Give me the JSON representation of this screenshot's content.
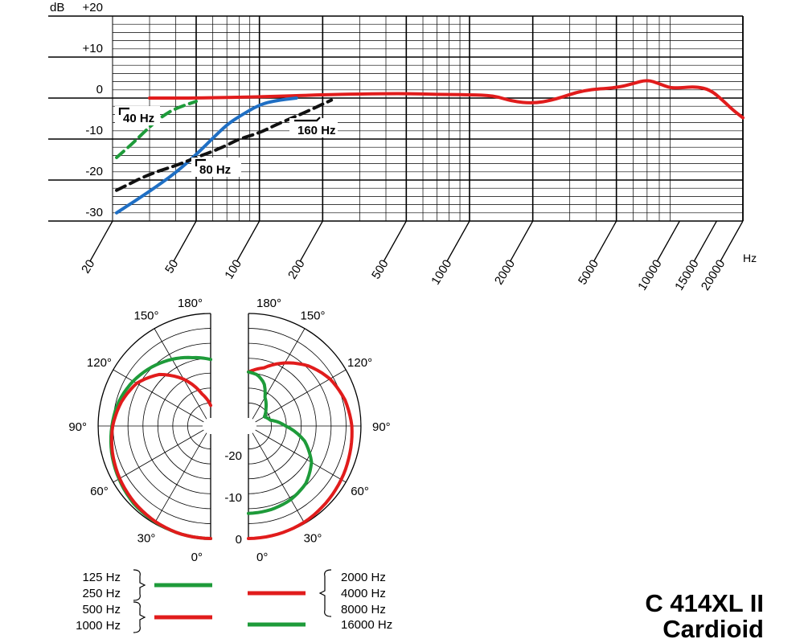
{
  "title": "C 414XL II",
  "subtitle": "Cardioid",
  "colors": {
    "green": "#1e9b3a",
    "red": "#e11c1c",
    "blue": "#1f6fc4",
    "black": "#111111"
  },
  "chart_data": [
    {
      "type": "line",
      "name": "frequency response",
      "xscale": "log",
      "xlim": [
        20,
        20000
      ],
      "ylim": [
        -30,
        20
      ],
      "xlabel": "Hz",
      "ylabel": "dB",
      "xticks": [
        "20",
        "50",
        "100",
        "200",
        "500",
        "1000",
        "2000",
        "5000",
        "10000",
        "15000",
        "20000"
      ],
      "yticks": [
        "+20",
        "+10",
        "0",
        "-10",
        "-20",
        "-30"
      ],
      "grid": true,
      "series": [
        {
          "color": "#e11c1c",
          "style": "solid",
          "x": [
            30,
            50,
            100,
            200,
            300,
            500,
            700,
            1000,
            1300,
            1600,
            2000,
            2500,
            3500,
            5000,
            6000,
            7000,
            8000,
            9000,
            10000,
            12000,
            14000,
            16000,
            18000,
            20000
          ],
          "y": [
            0,
            0,
            0.3,
            0.8,
            1,
            1.1,
            0.9,
            0.8,
            0.6,
            -0.8,
            -1.3,
            -0.5,
            2,
            2.5,
            3.5,
            4.5,
            3.5,
            2.5,
            2.5,
            2.8,
            2,
            -0.5,
            -3,
            -4.8
          ]
        },
        {
          "color": "#1e9b3a",
          "style": "dashed",
          "x": [
            20,
            25,
            30,
            35,
            40,
            50
          ],
          "y": [
            -14.5,
            -11,
            -7,
            -4.2,
            -2.5,
            -0.8
          ]
        },
        {
          "color": "#1f6fc4",
          "style": "solid",
          "x": [
            20,
            30,
            40,
            50,
            60,
            70,
            80,
            100,
            120,
            150
          ],
          "y": [
            -28,
            -22.8,
            -18.2,
            -13.8,
            -9.8,
            -6.5,
            -4.5,
            -1.6,
            -0.6,
            0
          ]
        },
        {
          "color": "#111111",
          "style": "dashed",
          "x": [
            20,
            30,
            40,
            50,
            60,
            70,
            80,
            100,
            120,
            160,
            200,
            220
          ],
          "y": [
            -22.5,
            -18.5,
            -16.5,
            -14.5,
            -13,
            -11.5,
            -10,
            -8.5,
            -6.5,
            -3.8,
            -1.5,
            -0.5
          ]
        }
      ],
      "annotations": [
        "40 Hz",
        "80 Hz",
        "160 Hz"
      ]
    },
    {
      "type": "polar",
      "name": "polar pattern",
      "angle_labels": [
        "180°",
        "150°",
        "120°",
        "90°",
        "60°",
        "30°",
        "0°"
      ],
      "radial_labels": [
        "-20",
        "-10",
        "0"
      ],
      "radial_unit": "dB",
      "rlim": [
        -25,
        0
      ],
      "series": [
        {
          "side": "left",
          "label_group": [
            "125 Hz",
            "250 Hz"
          ],
          "color": "#1e9b3a",
          "angles": [
            0,
            15,
            30,
            45,
            60,
            75,
            90,
            105,
            120,
            135,
            150,
            165,
            180
          ],
          "db": [
            0,
            -0.1,
            -0.4,
            -0.8,
            -1.6,
            -2.4,
            -3.3,
            -4.2,
            -5.5,
            -7,
            -8.5,
            -10,
            -11
          ]
        },
        {
          "side": "left",
          "label_group": [
            "500 Hz",
            "1000 Hz"
          ],
          "color": "#e11c1c",
          "angles": [
            0,
            15,
            30,
            45,
            60,
            75,
            90,
            105,
            120,
            135,
            150,
            165,
            180
          ],
          "db": [
            0,
            -0.1,
            -0.5,
            -1.1,
            -1.8,
            -2.6,
            -3.5,
            -4.8,
            -6.5,
            -9.5,
            -14,
            -19,
            -22
          ]
        },
        {
          "side": "right",
          "label_group": [
            "2000 Hz",
            "4000 Hz",
            "8000 Hz"
          ],
          "color": "#e11c1c",
          "angles": [
            0,
            15,
            30,
            45,
            60,
            75,
            90,
            105,
            120,
            135,
            150,
            165,
            180
          ],
          "db": [
            0,
            -0.1,
            -0.3,
            -0.8,
            -1.3,
            -1.8,
            -2.2,
            -3,
            -4.4,
            -6.6,
            -9.5,
            -12.5,
            -14
          ]
        },
        {
          "side": "right",
          "label_group": [
            "16000 Hz"
          ],
          "color": "#1e9b3a",
          "angles": [
            0,
            15,
            30,
            45,
            60,
            75,
            90,
            105,
            120,
            135,
            150,
            160,
            170,
            180
          ],
          "db": [
            -6,
            -6.2,
            -6.6,
            -7.5,
            -9.5,
            -13,
            -18,
            -21.5,
            -22.5,
            -21,
            -19,
            -16,
            -14.5,
            -14
          ]
        }
      ]
    }
  ],
  "legend": {
    "left_top": [
      "125 Hz",
      "250 Hz"
    ],
    "left_bottom": [
      "500 Hz",
      "1000 Hz"
    ],
    "right_top": [
      "2000 Hz",
      "4000 Hz",
      "8000 Hz"
    ],
    "right_bottom": [
      "16000 Hz"
    ]
  }
}
